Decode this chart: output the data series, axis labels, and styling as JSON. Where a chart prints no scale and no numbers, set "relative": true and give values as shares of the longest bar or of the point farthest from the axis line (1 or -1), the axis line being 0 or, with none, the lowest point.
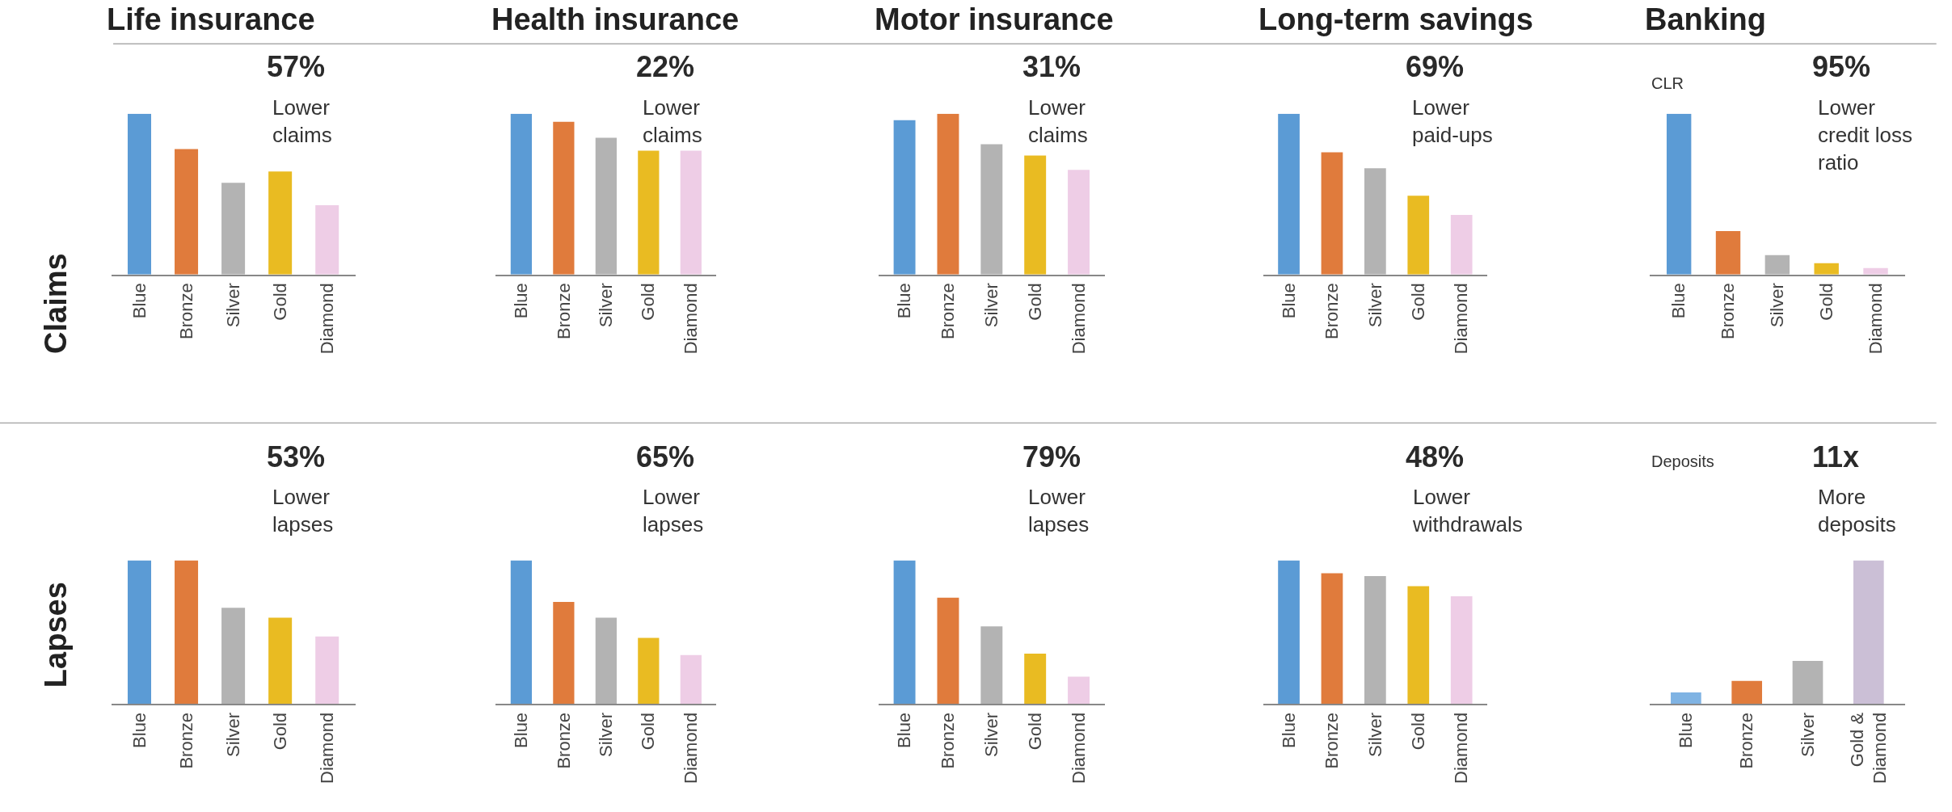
{
  "chart_data": [
    {
      "type": "bar",
      "relative": true,
      "title": "Life insurance",
      "ylabel": "Claims",
      "categories": [
        "Blue",
        "Bronze",
        "Silver",
        "Gold",
        "Diamond"
      ],
      "values": [
        1,
        0.78,
        0.57,
        0.64,
        0.43
      ],
      "colors": [
        "#5b9bd5",
        "#e07b3c",
        "#b3b3b3",
        "#e9bb22",
        "#eecde6"
      ],
      "annotations": [
        "57%",
        "Lower\nclaims"
      ]
    },
    {
      "type": "bar",
      "relative": true,
      "title": "Health insurance",
      "categories": [
        "Blue",
        "Bronze",
        "Silver",
        "Gold",
        "Diamond"
      ],
      "values": [
        1,
        0.95,
        0.85,
        0.77,
        0.77
      ],
      "colors": [
        "#5b9bd5",
        "#e07b3c",
        "#b3b3b3",
        "#e9bb22",
        "#eecde6"
      ],
      "annotations": [
        "22%",
        "Lower\nclaims"
      ]
    },
    {
      "type": "bar",
      "relative": true,
      "title": "Motor insurance",
      "categories": [
        "Blue",
        "Bronze",
        "Silver",
        "Gold",
        "Diamond"
      ],
      "values": [
        0.96,
        1,
        0.81,
        0.74,
        0.65
      ],
      "colors": [
        "#5b9bd5",
        "#e07b3c",
        "#b3b3b3",
        "#e9bb22",
        "#eecde6"
      ],
      "annotations": [
        "31%",
        "Lower\nclaims"
      ]
    },
    {
      "type": "bar",
      "relative": true,
      "title": "Long-term savings",
      "categories": [
        "Blue",
        "Bronze",
        "Silver",
        "Gold",
        "Diamond"
      ],
      "values": [
        1,
        0.76,
        0.66,
        0.49,
        0.37
      ],
      "colors": [
        "#5b9bd5",
        "#e07b3c",
        "#b3b3b3",
        "#e9bb22",
        "#eecde6"
      ],
      "annotations": [
        "69%",
        "Lower\npaid-ups"
      ]
    },
    {
      "type": "bar",
      "relative": true,
      "title": "Banking",
      "ylabel": "CLR",
      "categories": [
        "Blue",
        "Bronze",
        "Silver",
        "Gold",
        "Diamond"
      ],
      "values": [
        1,
        0.27,
        0.12,
        0.07,
        0.04
      ],
      "colors": [
        "#5b9bd5",
        "#e07b3c",
        "#b3b3b3",
        "#e9bb22",
        "#eecde6"
      ],
      "annotations": [
        "95%",
        "Lower\ncredit loss\nratio"
      ]
    },
    {
      "type": "bar",
      "relative": true,
      "ylabel": "Lapses",
      "categories": [
        "Blue",
        "Bronze",
        "Silver",
        "Gold",
        "Diamond"
      ],
      "values": [
        1,
        1,
        0.67,
        0.6,
        0.47
      ],
      "colors": [
        "#5b9bd5",
        "#e07b3c",
        "#b3b3b3",
        "#e9bb22",
        "#eecde6"
      ],
      "annotations": [
        "53%",
        "Lower\nlapses"
      ]
    },
    {
      "type": "bar",
      "relative": true,
      "categories": [
        "Blue",
        "Bronze",
        "Silver",
        "Gold",
        "Diamond"
      ],
      "values": [
        1,
        0.71,
        0.6,
        0.46,
        0.34
      ],
      "colors": [
        "#5b9bd5",
        "#e07b3c",
        "#b3b3b3",
        "#e9bb22",
        "#eecde6"
      ],
      "annotations": [
        "65%",
        "Lower\nlapses"
      ]
    },
    {
      "type": "bar",
      "relative": true,
      "categories": [
        "Blue",
        "Bronze",
        "Silver",
        "Gold",
        "Diamond"
      ],
      "values": [
        1,
        0.74,
        0.54,
        0.35,
        0.19
      ],
      "colors": [
        "#5b9bd5",
        "#e07b3c",
        "#b3b3b3",
        "#e9bb22",
        "#eecde6"
      ],
      "annotations": [
        "79%",
        "Lower\nlapses"
      ]
    },
    {
      "type": "bar",
      "relative": true,
      "categories": [
        "Blue",
        "Bronze",
        "Silver",
        "Gold",
        "Diamond"
      ],
      "values": [
        1,
        0.91,
        0.89,
        0.82,
        0.75
      ],
      "colors": [
        "#5b9bd5",
        "#e07b3c",
        "#b3b3b3",
        "#e9bb22",
        "#eecde6"
      ],
      "annotations": [
        "48%",
        "Lower\nwithdrawals"
      ]
    },
    {
      "type": "bar",
      "relative": true,
      "ylabel": "Deposits",
      "categories": [
        "Blue",
        "Bronze",
        "Silver",
        "Gold &\nDiamond"
      ],
      "values": [
        0.08,
        0.16,
        0.3,
        1
      ],
      "colors": [
        "#7fb3e3",
        "#e07b3c",
        "#b3b3b3",
        "#cbbfd6"
      ],
      "annotations": [
        "11x",
        "More\ndeposits"
      ]
    }
  ]
}
